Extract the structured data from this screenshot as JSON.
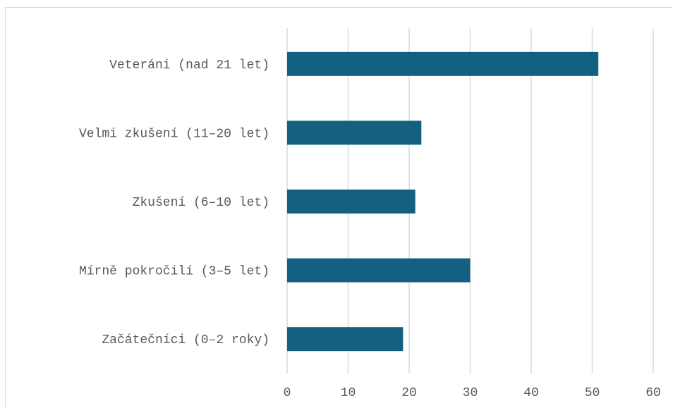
{
  "chart_data": {
    "type": "bar",
    "orientation": "horizontal",
    "title": "",
    "xlabel": "",
    "ylabel": "",
    "categories": [
      "Veteráni (nad 21 let)",
      "Velmi zkušení (11–20 let)",
      "Zkušení (6–10 let)",
      "Mírně pokročilí (3–5 let)",
      "Začátečníci (0–2 roky)"
    ],
    "values": [
      51,
      22,
      21,
      30,
      19
    ],
    "xlim": [
      0,
      60
    ],
    "ticks": [
      0,
      10,
      20,
      30,
      40,
      50,
      60
    ],
    "grid": "vertical",
    "legend": "none",
    "colors": {
      "bar": "#136080",
      "grid": "#d9d9d9",
      "text": "#595959"
    }
  }
}
